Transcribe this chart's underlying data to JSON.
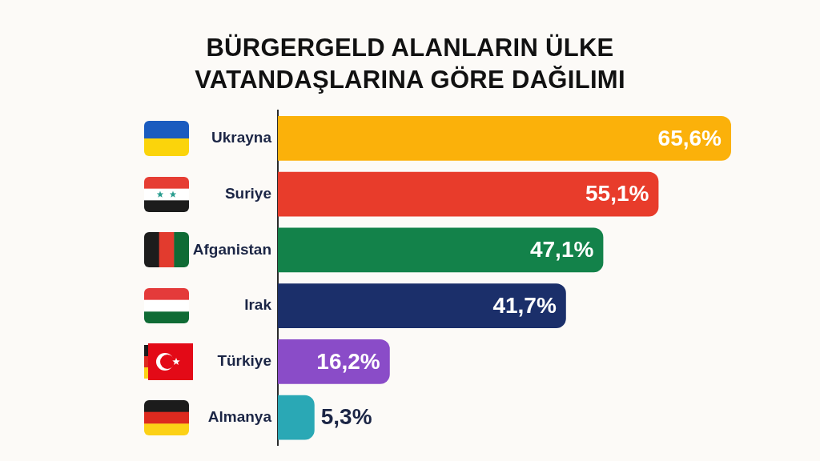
{
  "chart_data": {
    "type": "bar",
    "orientation": "horizontal",
    "title": "BÜRGERGELD ALANLARIN ÜLKE VATANDAŞLARINA GÖRE DAĞILIMI",
    "categories": [
      "Ukrayna",
      "Suriye",
      "Afganistan",
      "Irak",
      "Türkiye",
      "Almanya"
    ],
    "values": [
      65.6,
      55.1,
      47.1,
      41.7,
      16.2,
      5.3
    ],
    "colors": [
      "#fbb10a",
      "#e83c2b",
      "#13824a",
      "#1b2f6a",
      "#8a4cc8",
      "#2aa8b5"
    ],
    "value_labels": [
      "65,6%",
      "55,1%",
      "47,1%",
      "41,7%",
      "16,2%",
      "5,3%"
    ],
    "tick_labels": "y"
  }
}
